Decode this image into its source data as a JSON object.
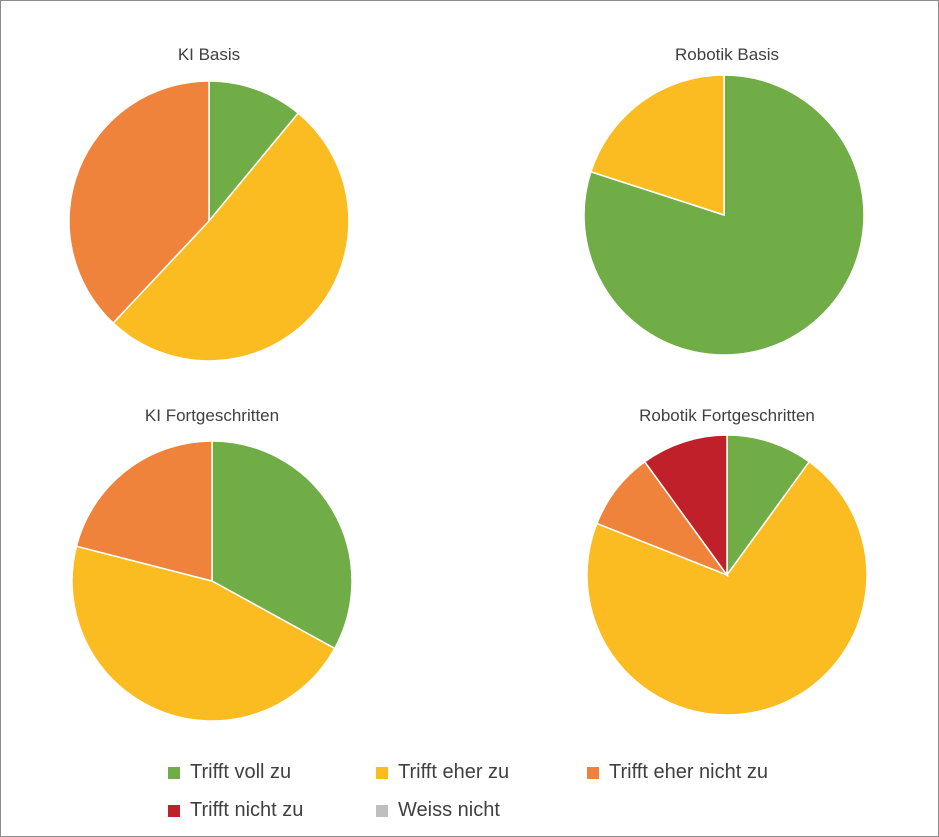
{
  "colors": {
    "Trifft voll zu": "#70ad47",
    "Trifft eher zu": "#fbbc22",
    "Trifft eher nicht zu": "#ef833b",
    "Trifft nicht zu": "#c0202a",
    "Weiss nicht": "#bfbfbf"
  },
  "legend": [
    "Trifft voll zu",
    "Trifft eher zu",
    "Trifft eher nicht zu",
    "Trifft nicht zu",
    "Weiss nicht"
  ],
  "chart_data": [
    {
      "type": "pie",
      "title": "KI Basis",
      "categories": [
        "Trifft voll zu",
        "Trifft eher zu",
        "Trifft eher nicht zu",
        "Trifft nicht zu",
        "Weiss nicht"
      ],
      "values": [
        11,
        51,
        38,
        0,
        0
      ]
    },
    {
      "type": "pie",
      "title": "Robotik Basis",
      "categories": [
        "Trifft voll zu",
        "Trifft eher zu",
        "Trifft eher nicht zu",
        "Trifft nicht zu",
        "Weiss nicht"
      ],
      "values": [
        80,
        20,
        0,
        0,
        0
      ]
    },
    {
      "type": "pie",
      "title": "KI Fortgeschritten",
      "categories": [
        "Trifft voll zu",
        "Trifft eher zu",
        "Trifft eher nicht zu",
        "Trifft nicht zu",
        "Weiss nicht"
      ],
      "values": [
        33,
        46,
        21,
        0,
        0
      ]
    },
    {
      "type": "pie",
      "title": "Robotik Fortgeschritten",
      "categories": [
        "Trifft voll zu",
        "Trifft eher zu",
        "Trifft eher nicht zu",
        "Trifft nicht zu",
        "Weiss nicht"
      ],
      "values": [
        10,
        71,
        9,
        10,
        0
      ]
    }
  ]
}
